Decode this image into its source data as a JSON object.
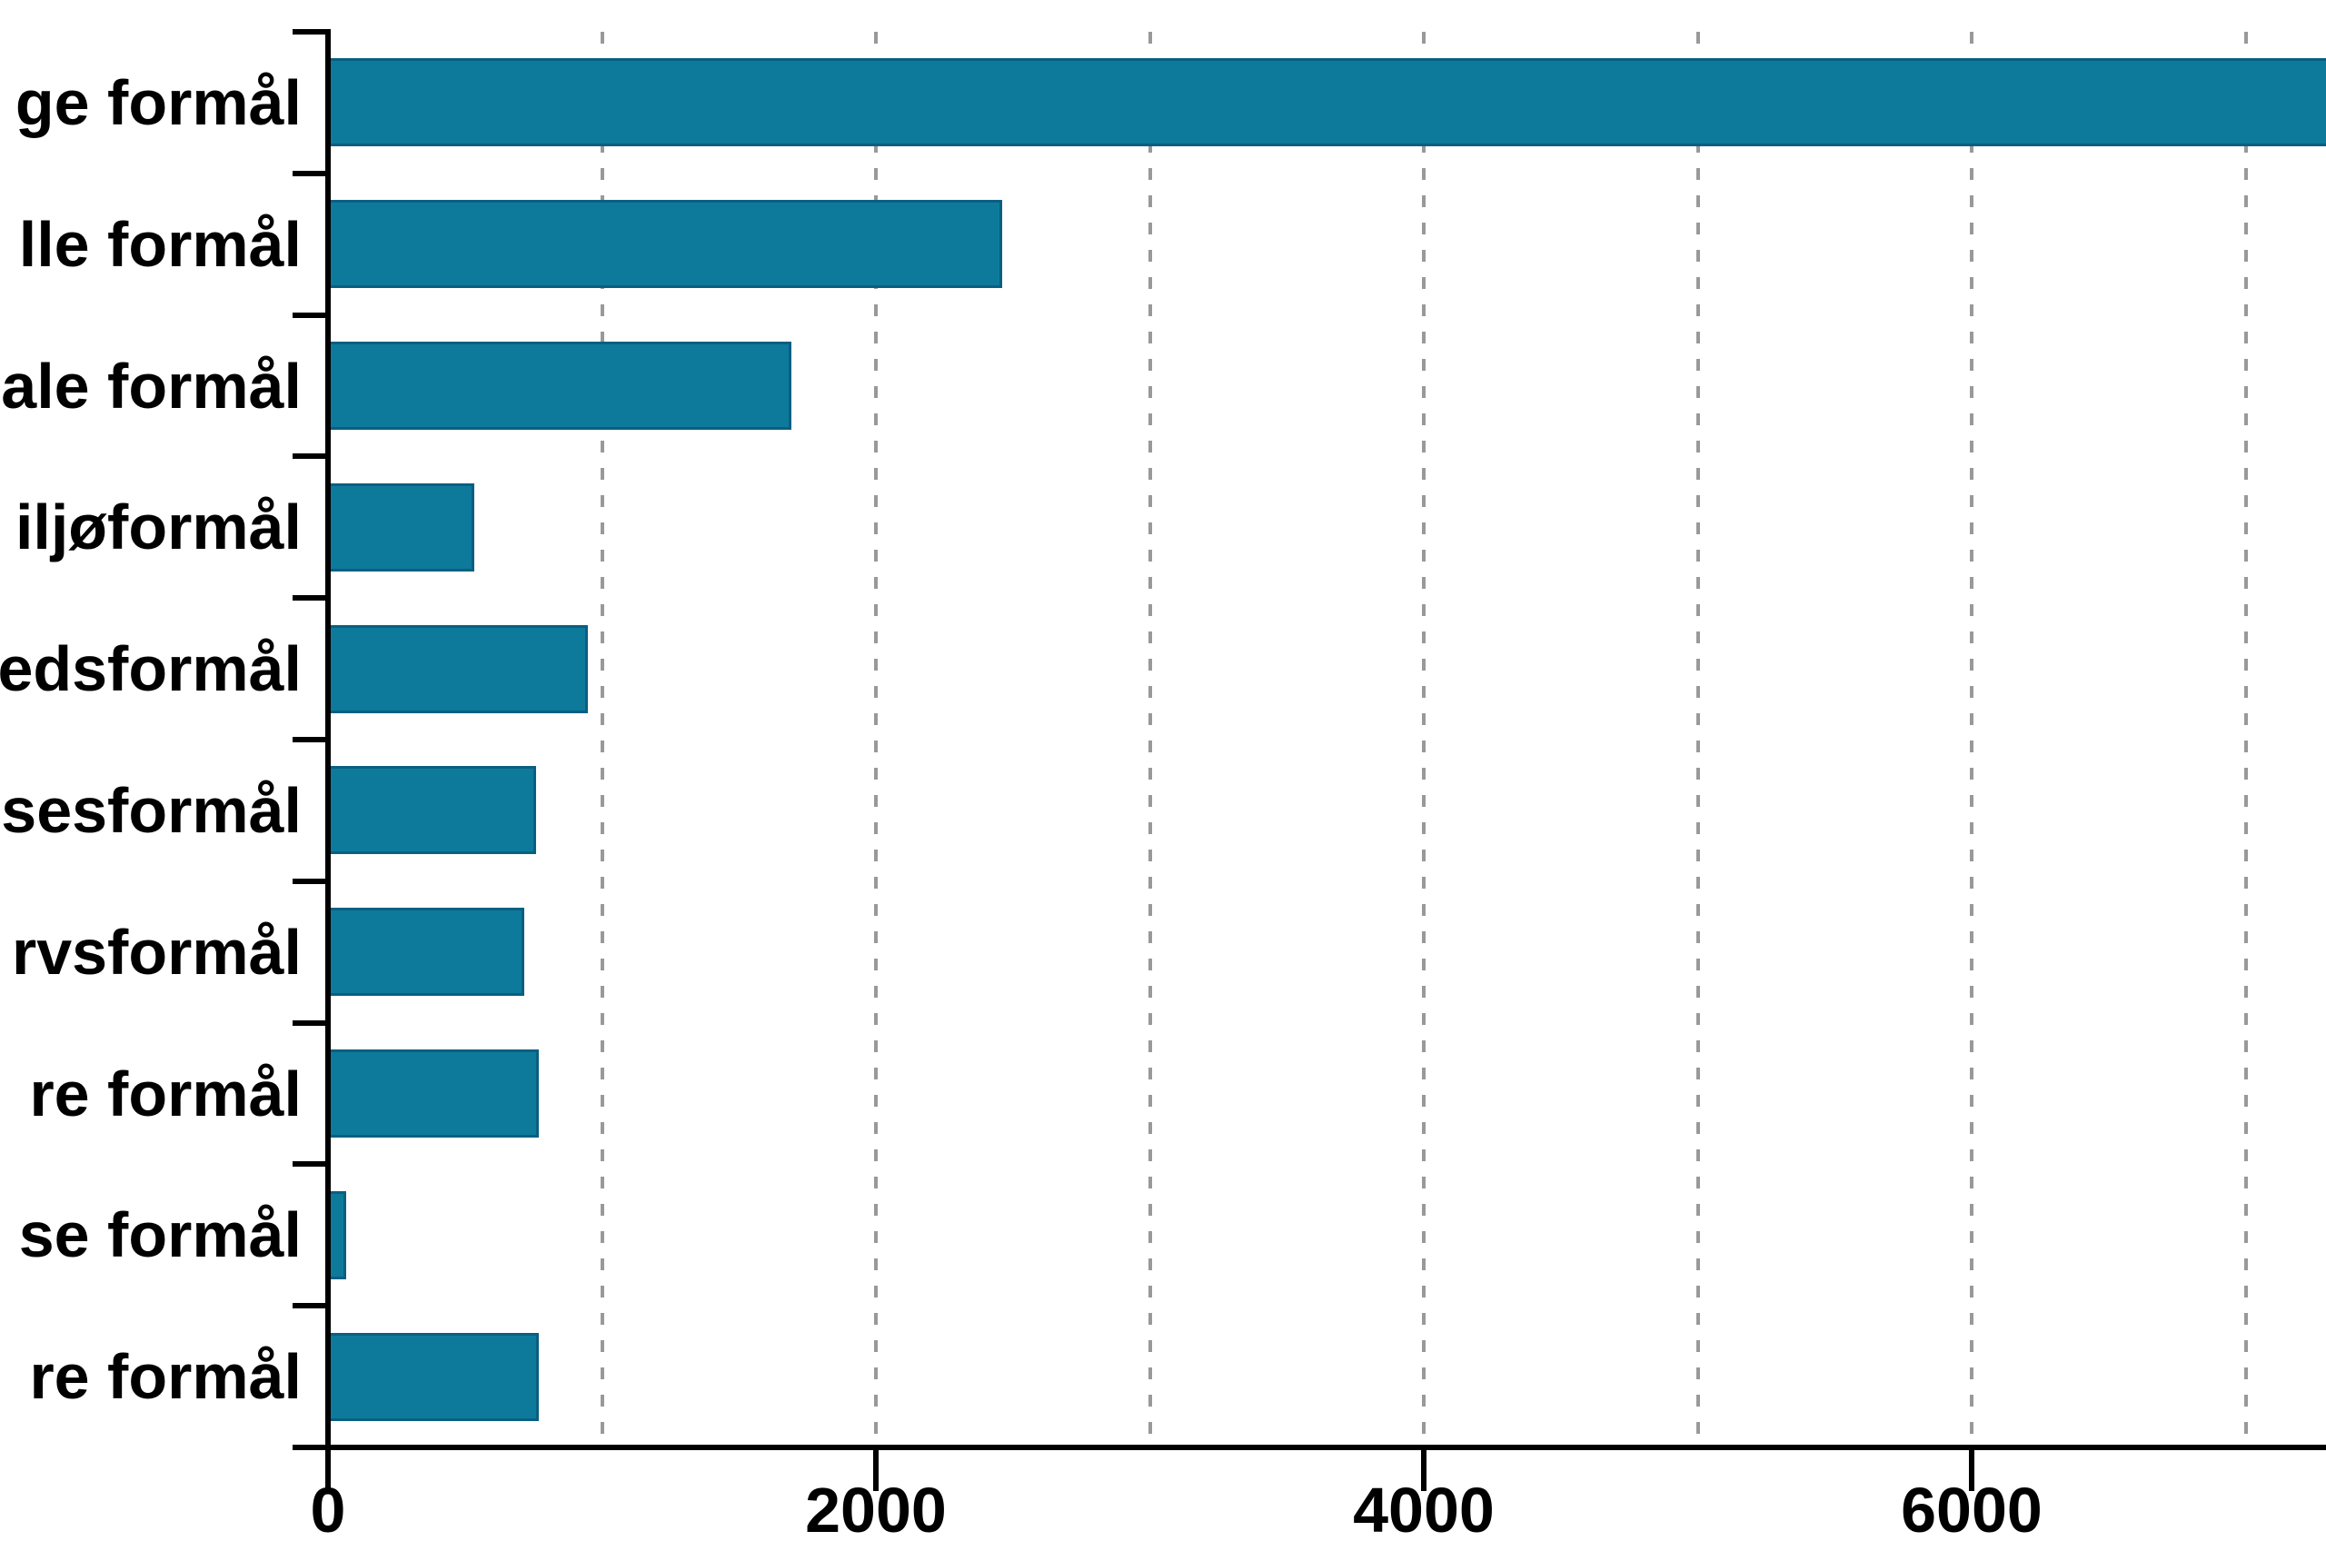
{
  "chart_data": {
    "type": "bar",
    "orientation": "horizontal",
    "title": "",
    "xlabel": "",
    "ylabel": "",
    "categories": [
      "ge formål",
      "lle formål",
      "ale formål",
      "iljøformål",
      "edsformål",
      "sesformål",
      "rvsformål",
      "re formål",
      "se formål",
      "re formål"
    ],
    "values": [
      7400,
      2460,
      1690,
      535,
      950,
      760,
      715,
      770,
      65,
      770
    ],
    "categories_truncated_left": true,
    "first_bar_clipped_at_right": true,
    "x_tick_values": [
      0,
      2000,
      4000,
      6000
    ],
    "x_tick_labels": [
      "0",
      "2000",
      "4000",
      "6000"
    ],
    "gridline_values": [
      1000,
      2000,
      3000,
      4000,
      5000,
      6000,
      7000
    ],
    "xlim_visible": [
      0,
      7290
    ],
    "grid": "dashed-vertical",
    "legend": "none",
    "colors": {
      "bar_fill": "#0d7a9b",
      "bar_edge": "#0a5f80",
      "grid": "#999999",
      "axis": "#000000",
      "text": "#000000",
      "background": "#ffffff"
    }
  }
}
